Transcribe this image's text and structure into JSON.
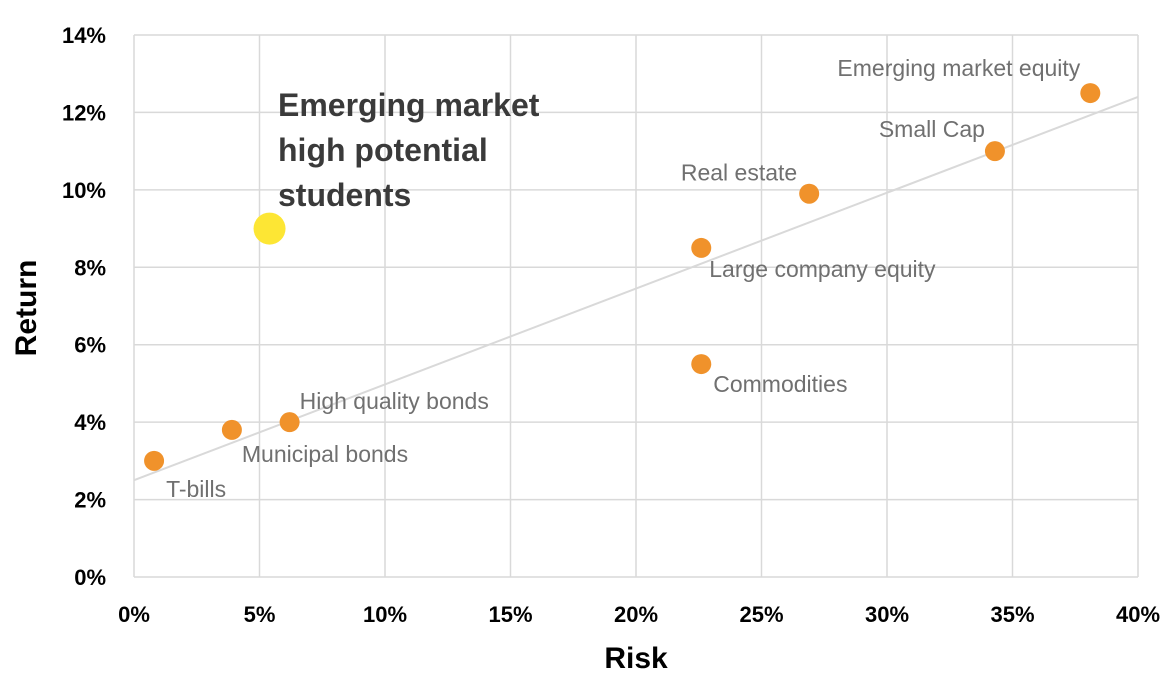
{
  "chart_data": {
    "type": "scatter",
    "xlabel": "Risk",
    "ylabel": "Return",
    "xlim": [
      0,
      40
    ],
    "ylim": [
      0,
      14
    ],
    "x_ticks": [
      0,
      5,
      10,
      15,
      20,
      25,
      30,
      35,
      40
    ],
    "y_ticks": [
      0,
      2,
      4,
      6,
      8,
      10,
      12,
      14
    ],
    "x_tick_labels": [
      "0%",
      "5%",
      "10%",
      "15%",
      "20%",
      "25%",
      "30%",
      "35%",
      "40%"
    ],
    "y_tick_labels": [
      "0%",
      "2%",
      "4%",
      "6%",
      "8%",
      "10%",
      "12%",
      "14%"
    ],
    "grid": true,
    "colors": {
      "point": "#f0922b",
      "highlight": "#fde634",
      "trendline": "#d9d9d9",
      "grid": "#d9d9d9",
      "label": "#707070"
    },
    "points": [
      {
        "name": "T-bills",
        "x": 0.8,
        "y": 3.0
      },
      {
        "name": "Municipal bonds",
        "x": 3.9,
        "y": 3.8
      },
      {
        "name": "High quality bonds",
        "x": 6.2,
        "y": 4.0
      },
      {
        "name": "Commodities",
        "x": 22.6,
        "y": 5.5
      },
      {
        "name": "Large company equity",
        "x": 22.6,
        "y": 8.5
      },
      {
        "name": "Real estate",
        "x": 26.9,
        "y": 9.9
      },
      {
        "name": "Small Cap",
        "x": 34.3,
        "y": 11.0
      },
      {
        "name": "Emerging market equity",
        "x": 38.1,
        "y": 12.5
      }
    ],
    "highlight": {
      "x": 5.4,
      "y": 9.0
    },
    "annotation": [
      "Emerging market",
      "high potential",
      "students"
    ],
    "trendline": {
      "x": [
        0,
        40
      ],
      "y": [
        2.5,
        12.4
      ]
    }
  }
}
